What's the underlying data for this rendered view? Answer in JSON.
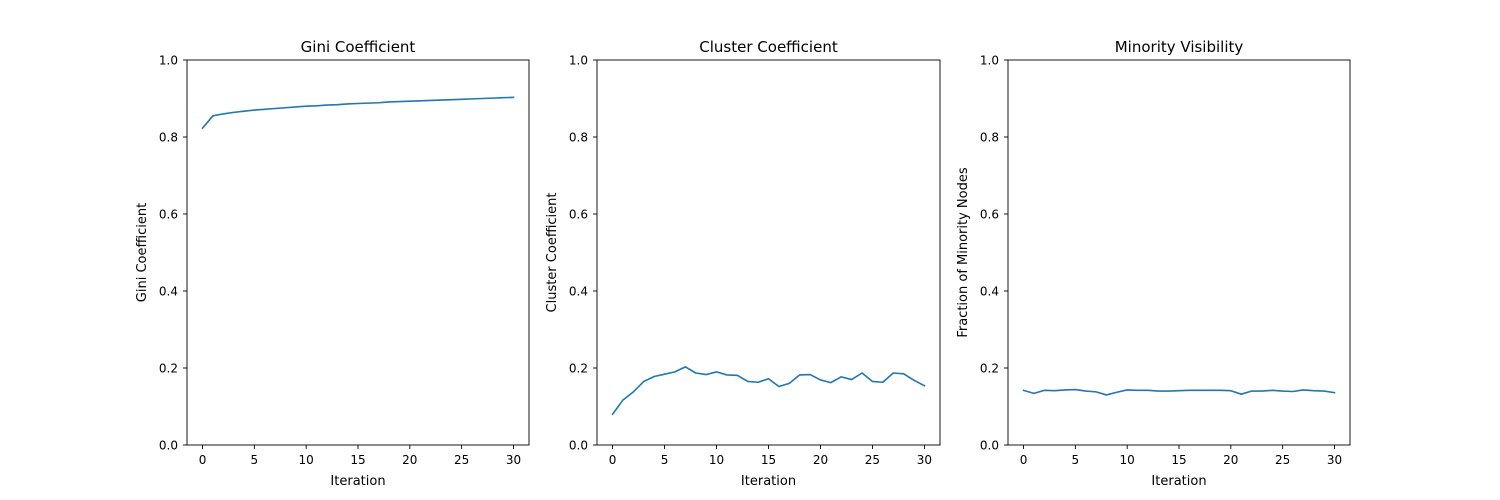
{
  "chart_data": [
    {
      "type": "line",
      "title": "Gini Coefficient",
      "xlabel": "Iteration",
      "ylabel": "Gini Coefficient",
      "xlim": [
        -1.5,
        31.5
      ],
      "ylim": [
        0,
        1
      ],
      "xticks": [
        "0",
        "5",
        "10",
        "15",
        "20",
        "25",
        "30"
      ],
      "yticks": [
        "0.0",
        "0.2",
        "0.4",
        "0.6",
        "0.8",
        "1.0"
      ],
      "grid": false,
      "series": [
        {
          "color": "#1f77b4",
          "x": [
            0,
            1,
            2,
            3,
            4,
            5,
            6,
            7,
            8,
            9,
            10,
            11,
            12,
            13,
            14,
            15,
            16,
            17,
            18,
            19,
            20,
            21,
            22,
            23,
            24,
            25,
            26,
            27,
            28,
            29,
            30
          ],
          "values": [
            0.823,
            0.855,
            0.86,
            0.864,
            0.867,
            0.87,
            0.872,
            0.874,
            0.876,
            0.878,
            0.88,
            0.881,
            0.883,
            0.884,
            0.886,
            0.887,
            0.888,
            0.889,
            0.891,
            0.892,
            0.893,
            0.894,
            0.895,
            0.896,
            0.897,
            0.898,
            0.899,
            0.9,
            0.901,
            0.902,
            0.903
          ]
        }
      ]
    },
    {
      "type": "line",
      "title": "Cluster Coefficient",
      "xlabel": "Iteration",
      "ylabel": "Cluster Coefficient",
      "xlim": [
        -1.5,
        31.5
      ],
      "ylim": [
        0,
        1
      ],
      "xticks": [
        "0",
        "5",
        "10",
        "15",
        "20",
        "25",
        "30"
      ],
      "yticks": [
        "0.0",
        "0.2",
        "0.4",
        "0.6",
        "0.8",
        "1.0"
      ],
      "grid": false,
      "series": [
        {
          "color": "#1f77b4",
          "x": [
            0,
            1,
            2,
            3,
            4,
            5,
            6,
            7,
            8,
            9,
            10,
            11,
            12,
            13,
            14,
            15,
            16,
            17,
            18,
            19,
            20,
            21,
            22,
            23,
            24,
            25,
            26,
            27,
            28,
            29,
            30
          ],
          "values": [
            0.08,
            0.117,
            0.138,
            0.165,
            0.178,
            0.184,
            0.19,
            0.203,
            0.187,
            0.183,
            0.19,
            0.182,
            0.181,
            0.165,
            0.163,
            0.172,
            0.152,
            0.16,
            0.182,
            0.183,
            0.169,
            0.162,
            0.177,
            0.17,
            0.187,
            0.165,
            0.163,
            0.187,
            0.185,
            0.168,
            0.154
          ]
        }
      ]
    },
    {
      "type": "line",
      "title": "Minority Visibility",
      "xlabel": "Iteration",
      "ylabel": "Fraction of Minority Nodes",
      "xlim": [
        -1.5,
        31.5
      ],
      "ylim": [
        0,
        1
      ],
      "xticks": [
        "0",
        "5",
        "10",
        "15",
        "20",
        "25",
        "30"
      ],
      "yticks": [
        "0.0",
        "0.2",
        "0.4",
        "0.6",
        "0.8",
        "1.0"
      ],
      "grid": false,
      "series": [
        {
          "color": "#1f77b4",
          "x": [
            0,
            1,
            2,
            3,
            4,
            5,
            6,
            7,
            8,
            9,
            10,
            11,
            12,
            13,
            14,
            15,
            16,
            17,
            18,
            19,
            20,
            21,
            22,
            23,
            24,
            25,
            26,
            27,
            28,
            29,
            30
          ],
          "values": [
            0.142,
            0.134,
            0.142,
            0.141,
            0.143,
            0.144,
            0.14,
            0.138,
            0.13,
            0.137,
            0.143,
            0.142,
            0.142,
            0.14,
            0.14,
            0.141,
            0.142,
            0.142,
            0.142,
            0.142,
            0.141,
            0.132,
            0.14,
            0.14,
            0.142,
            0.14,
            0.139,
            0.143,
            0.141,
            0.14,
            0.136
          ]
        }
      ]
    }
  ]
}
